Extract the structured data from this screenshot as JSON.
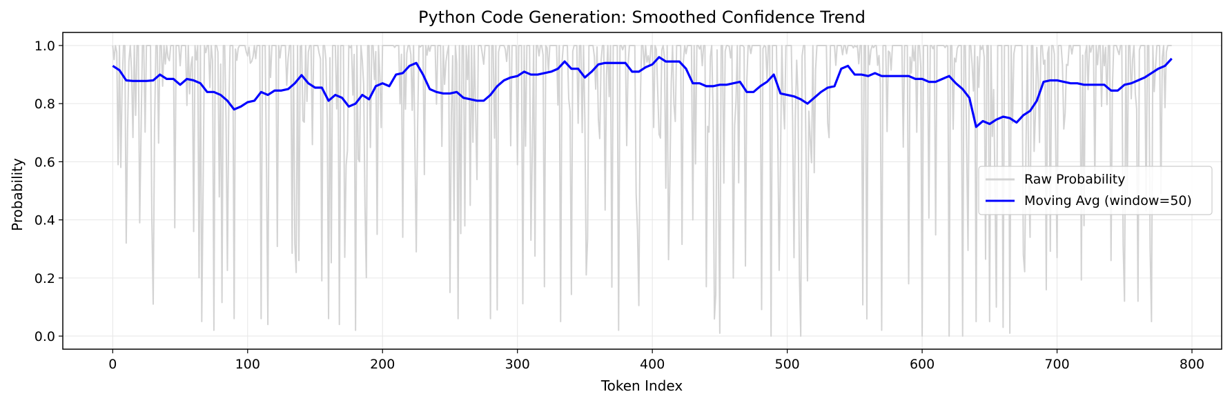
{
  "chart_data": {
    "type": "line",
    "title": "Python Code Generation: Smoothed Confidence Trend",
    "xlabel": "Token Index",
    "ylabel": "Probability",
    "xlim": [
      -37,
      822
    ],
    "ylim": [
      -0.045,
      1.045
    ],
    "xticks": [
      0,
      100,
      200,
      300,
      400,
      500,
      600,
      700,
      800
    ],
    "yticks": [
      0.0,
      0.2,
      0.4,
      0.6,
      0.8,
      1.0
    ],
    "xtick_labels": [
      "0",
      "100",
      "200",
      "300",
      "400",
      "500",
      "600",
      "700",
      "800"
    ],
    "ytick_labels": [
      "0.0",
      "0.2",
      "0.4",
      "0.6",
      "0.8",
      "1.0"
    ],
    "grid": true,
    "legend_position": "right",
    "series": [
      {
        "name": "Raw Probability",
        "color": "#d3d3d3",
        "x": [
          0,
          4,
          8,
          10,
          20,
          30,
          33,
          40,
          60,
          66,
          70,
          75,
          90,
          95,
          110,
          113,
          115,
          138,
          155,
          160,
          168,
          180,
          183,
          196,
          200,
          215,
          225,
          250,
          256,
          265,
          280,
          300,
          310,
          320,
          332,
          335,
          375,
          430,
          440,
          450,
          460,
          488,
          490,
          505,
          510,
          515,
          570,
          590,
          600,
          620,
          630,
          640,
          645,
          650,
          655,
          660,
          665,
          670,
          675,
          680,
          700,
          720,
          740,
          750,
          760,
          770,
          785
        ],
        "y": [
          1.0,
          0.59,
          1.0,
          0.32,
          0.39,
          0.11,
          1.0,
          1.0,
          0.36,
          0.05,
          1.0,
          0.02,
          0.06,
          1.0,
          0.06,
          1.0,
          0.04,
          0.26,
          0.19,
          0.06,
          0.04,
          0.02,
          0.6,
          0.35,
          1.0,
          0.34,
          0.29,
          0.15,
          0.06,
          0.45,
          0.06,
          0.59,
          0.33,
          0.17,
          0.05,
          1.0,
          0.02,
          0.4,
          0.17,
          0.01,
          0.2,
          0.0,
          1.0,
          0.27,
          0.0,
          0.19,
          0.02,
          0.18,
          0.0,
          0.0,
          0.0,
          0.05,
          1.0,
          0.05,
          0.1,
          0.03,
          0.01,
          1.0,
          0.28,
          0.34,
          0.27,
          0.38,
          0.26,
          0.12,
          0.12,
          0.05,
          1.0
        ]
      },
      {
        "name": "Moving Avg (window=50)",
        "color": "#0000ff",
        "x": [
          0,
          5,
          10,
          15,
          20,
          25,
          30,
          35,
          40,
          45,
          50,
          55,
          60,
          65,
          70,
          75,
          80,
          85,
          90,
          95,
          100,
          105,
          110,
          115,
          120,
          125,
          130,
          135,
          140,
          145,
          150,
          155,
          160,
          165,
          170,
          175,
          180,
          185,
          190,
          195,
          200,
          205,
          210,
          215,
          220,
          225,
          230,
          235,
          240,
          245,
          250,
          255,
          260,
          265,
          270,
          275,
          280,
          285,
          290,
          295,
          300,
          305,
          310,
          315,
          320,
          325,
          330,
          335,
          340,
          345,
          350,
          355,
          360,
          365,
          370,
          375,
          380,
          385,
          390,
          395,
          400,
          405,
          410,
          415,
          420,
          425,
          430,
          435,
          440,
          445,
          450,
          455,
          460,
          465,
          470,
          475,
          480,
          485,
          490,
          495,
          500,
          505,
          510,
          515,
          520,
          525,
          530,
          535,
          540,
          545,
          550,
          555,
          560,
          565,
          570,
          575,
          580,
          585,
          590,
          595,
          600,
          605,
          610,
          615,
          620,
          625,
          630,
          635,
          640,
          645,
          650,
          655,
          660,
          665,
          670,
          675,
          680,
          685,
          690,
          695,
          700,
          705,
          710,
          715,
          720,
          725,
          730,
          735,
          740,
          745,
          750,
          755,
          760,
          765,
          770,
          775,
          780,
          785
        ],
        "y": [
          0.93,
          0.915,
          0.88,
          0.878,
          0.878,
          0.878,
          0.88,
          0.9,
          0.885,
          0.885,
          0.865,
          0.885,
          0.88,
          0.87,
          0.84,
          0.84,
          0.83,
          0.81,
          0.78,
          0.79,
          0.805,
          0.81,
          0.84,
          0.83,
          0.845,
          0.845,
          0.85,
          0.87,
          0.898,
          0.87,
          0.855,
          0.855,
          0.81,
          0.83,
          0.82,
          0.79,
          0.8,
          0.83,
          0.815,
          0.86,
          0.87,
          0.86,
          0.9,
          0.905,
          0.93,
          0.94,
          0.9,
          0.85,
          0.84,
          0.835,
          0.835,
          0.84,
          0.82,
          0.815,
          0.81,
          0.81,
          0.83,
          0.86,
          0.88,
          0.89,
          0.895,
          0.91,
          0.9,
          0.9,
          0.905,
          0.91,
          0.92,
          0.945,
          0.92,
          0.92,
          0.89,
          0.91,
          0.935,
          0.94,
          0.94,
          0.94,
          0.94,
          0.91,
          0.91,
          0.925,
          0.935,
          0.96,
          0.945,
          0.945,
          0.945,
          0.92,
          0.87,
          0.87,
          0.86,
          0.86,
          0.865,
          0.865,
          0.87,
          0.875,
          0.84,
          0.84,
          0.86,
          0.875,
          0.9,
          0.835,
          0.83,
          0.825,
          0.815,
          0.8,
          0.82,
          0.84,
          0.855,
          0.86,
          0.92,
          0.93,
          0.9,
          0.9,
          0.895,
          0.905,
          0.895,
          0.895,
          0.895,
          0.895,
          0.895,
          0.885,
          0.885,
          0.875,
          0.875,
          0.885,
          0.895,
          0.87,
          0.85,
          0.82,
          0.72,
          0.74,
          0.73,
          0.745,
          0.755,
          0.75,
          0.735,
          0.76,
          0.775,
          0.81,
          0.875,
          0.88,
          0.88,
          0.875,
          0.87,
          0.87,
          0.865,
          0.865,
          0.865,
          0.865,
          0.845,
          0.845,
          0.865,
          0.87,
          0.88,
          0.89,
          0.905,
          0.92,
          0.93,
          0.955
        ]
      }
    ]
  }
}
